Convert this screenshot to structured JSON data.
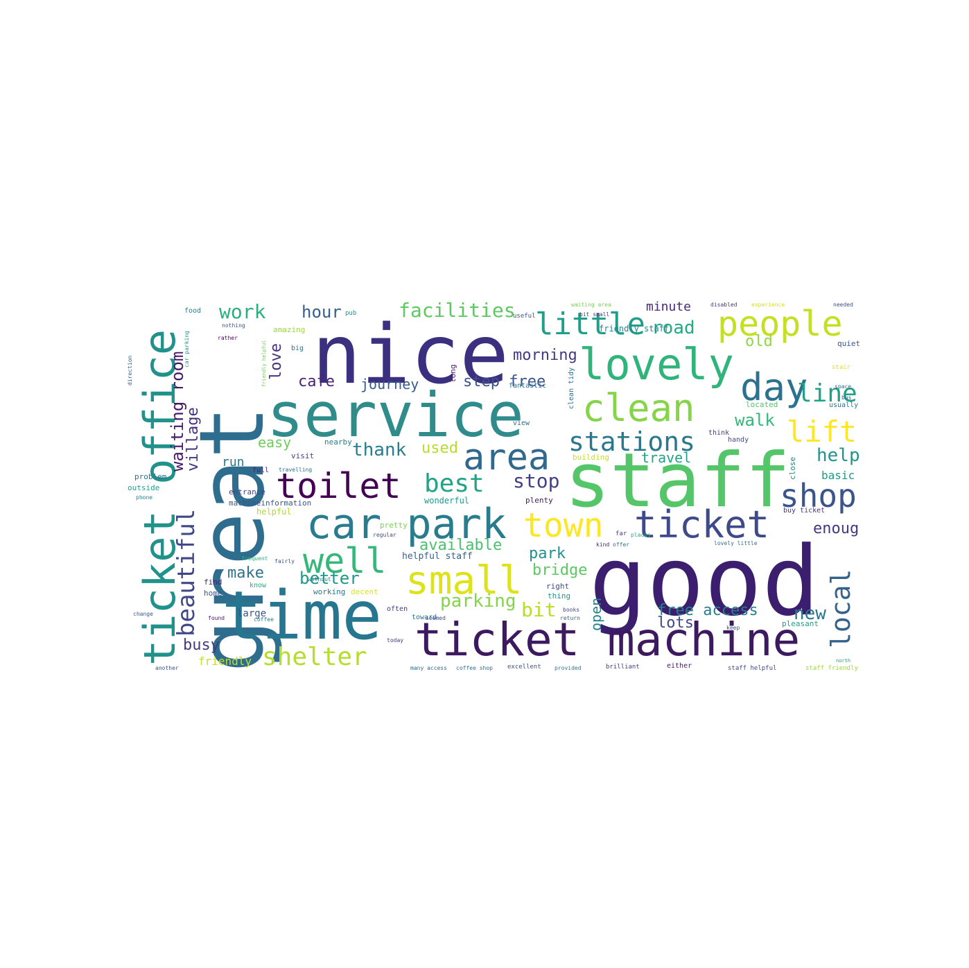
{
  "wordcloud": {
    "words": [
      {
        "text": "nice",
        "color": "#3b2f7f"
      },
      {
        "text": "great",
        "color": "#2e6d8e"
      },
      {
        "text": "good",
        "color": "#3b1e6e"
      },
      {
        "text": "staff",
        "color": "#54c568"
      },
      {
        "text": "service",
        "color": "#2f8c8a"
      },
      {
        "text": "time",
        "color": "#25768e"
      },
      {
        "text": "ticket machine",
        "color": "#3d1a5f"
      },
      {
        "text": "ticket office",
        "color": "#21918c"
      },
      {
        "text": "car park",
        "color": "#287c8e"
      },
      {
        "text": "lovely",
        "color": "#2fb47c"
      },
      {
        "text": "people",
        "color": "#c5e021"
      },
      {
        "text": "toilet",
        "color": "#440154"
      },
      {
        "text": "small",
        "color": "#dde318"
      },
      {
        "text": "ticket",
        "color": "#3e4a89"
      },
      {
        "text": "clean",
        "color": "#86d549"
      },
      {
        "text": "little",
        "color": "#1f9e89"
      },
      {
        "text": "day",
        "color": "#2c728e"
      },
      {
        "text": "area",
        "color": "#31688e"
      },
      {
        "text": "town",
        "color": "#fde725"
      },
      {
        "text": "well",
        "color": "#35b779"
      },
      {
        "text": "shop",
        "color": "#39558c"
      },
      {
        "text": "stations",
        "color": "#2a788e"
      },
      {
        "text": "beautiful",
        "color": "#3f4788"
      },
      {
        "text": "shelter",
        "color": "#b5de2b"
      },
      {
        "text": "local",
        "color": "#33638d"
      },
      {
        "text": "best",
        "color": "#20a386"
      },
      {
        "text": "lift",
        "color": "#fde725"
      },
      {
        "text": "line",
        "color": "#1fa187"
      },
      {
        "text": "facilities",
        "color": "#5ec962"
      },
      {
        "text": "work",
        "color": "#2ab07f"
      },
      {
        "text": "waiting room",
        "color": "#48186a"
      },
      {
        "text": "village",
        "color": "#46337e"
      },
      {
        "text": "road",
        "color": "#22a884"
      },
      {
        "text": "hour",
        "color": "#355f8d"
      },
      {
        "text": "better",
        "color": "#1f988b"
      },
      {
        "text": "available",
        "color": "#4ac16d"
      },
      {
        "text": "parking",
        "color": "#84d44b"
      },
      {
        "text": "free access",
        "color": "#277f8e"
      },
      {
        "text": "journey",
        "color": "#365c8d"
      },
      {
        "text": "step free",
        "color": "#3b528b"
      },
      {
        "text": "cafe",
        "color": "#482475"
      },
      {
        "text": "thank",
        "color": "#287d8e"
      },
      {
        "text": "morning",
        "color": "#443983"
      },
      {
        "text": "walk",
        "color": "#35b779"
      },
      {
        "text": "help",
        "color": "#1f958b"
      },
      {
        "text": "stop",
        "color": "#424086"
      },
      {
        "text": "bit",
        "color": "#b8de29"
      },
      {
        "text": "lots",
        "color": "#3e4a89"
      },
      {
        "text": "busy",
        "color": "#443a83"
      },
      {
        "text": "enough",
        "color": "#453882"
      },
      {
        "text": "bridge",
        "color": "#5cc863"
      },
      {
        "text": "make",
        "color": "#2c728e"
      },
      {
        "text": "new",
        "color": "#2a768e"
      },
      {
        "text": "park",
        "color": "#21918c"
      },
      {
        "text": "used",
        "color": "#b5de2b"
      },
      {
        "text": "old",
        "color": "#8fd744"
      },
      {
        "text": "love",
        "color": "#46327e"
      },
      {
        "text": "easy",
        "color": "#6ccd5a"
      },
      {
        "text": "travel",
        "color": "#20a386"
      },
      {
        "text": "minute",
        "color": "#482878"
      },
      {
        "text": "open",
        "color": "#26828e"
      },
      {
        "text": "run",
        "color": "#2a788e"
      },
      {
        "text": "basic",
        "color": "#1f978b"
      },
      {
        "text": "friendly",
        "color": "#c2df23"
      },
      {
        "text": "friendly staff",
        "color": "#26828e"
      },
      {
        "text": "helpful staff",
        "color": "#35608d"
      },
      {
        "text": "helpful",
        "color": "#addc30"
      },
      {
        "text": "plenty",
        "color": "#48186a"
      },
      {
        "text": "pleasant",
        "color": "#1fa088"
      },
      {
        "text": "nearby",
        "color": "#287c8e"
      },
      {
        "text": "wonderful",
        "color": "#1f9a8a"
      },
      {
        "text": "entrance",
        "color": "#414487"
      },
      {
        "text": "machineinformation",
        "color": "#39558c"
      },
      {
        "text": "problem",
        "color": "#2d708e"
      },
      {
        "text": "outside",
        "color": "#20a486"
      },
      {
        "text": "large",
        "color": "#3b528b"
      },
      {
        "text": "find",
        "color": "#481f70"
      },
      {
        "text": "home",
        "color": "#3a548c"
      },
      {
        "text": "working",
        "color": "#2a768e"
      },
      {
        "text": "decent",
        "color": "#dde318"
      },
      {
        "text": "pretty",
        "color": "#7ad151"
      },
      {
        "text": "often",
        "color": "#443983"
      },
      {
        "text": "toward",
        "color": "#2c728e"
      },
      {
        "text": "right",
        "color": "#3e4a89"
      },
      {
        "text": "thing",
        "color": "#1f988b"
      },
      {
        "text": "full",
        "color": "#482173"
      },
      {
        "text": "know",
        "color": "#27ad81"
      },
      {
        "text": "visit",
        "color": "#433e85"
      },
      {
        "text": "amazing",
        "color": "#9bd93c"
      },
      {
        "text": "useful",
        "color": "#3b528b"
      },
      {
        "text": "view",
        "color": "#31688e"
      },
      {
        "text": "long",
        "color": "#481b6d"
      },
      {
        "text": "quiet",
        "color": "#39568c"
      },
      {
        "text": "located",
        "color": "#52c569"
      },
      {
        "text": "usually",
        "color": "#2c728e"
      },
      {
        "text": "handy",
        "color": "#3f4788"
      },
      {
        "text": "close",
        "color": "#25848e"
      },
      {
        "text": "think",
        "color": "#433e85"
      },
      {
        "text": "buy ticket",
        "color": "#46327e"
      },
      {
        "text": "staff helpful",
        "color": "#3e4989"
      },
      {
        "text": "staff friendly",
        "color": "#a0da39"
      },
      {
        "text": "coffee shop",
        "color": "#2d708e"
      },
      {
        "text": "excellent",
        "color": "#3b528b"
      },
      {
        "text": "provided",
        "color": "#2a788e"
      },
      {
        "text": "brilliant",
        "color": "#443a83"
      },
      {
        "text": "either",
        "color": "#481467"
      },
      {
        "text": "many access",
        "color": "#31678e"
      },
      {
        "text": "building",
        "color": "#c8e020"
      },
      {
        "text": "fantastic",
        "color": "#2c718e"
      },
      {
        "text": "clean tidy",
        "color": "#2e6e8e"
      },
      {
        "text": "food",
        "color": "#29798e"
      },
      {
        "text": "big",
        "color": "#2d708e"
      },
      {
        "text": "rather",
        "color": "#440154"
      },
      {
        "text": "nothing",
        "color": "#3b528b"
      },
      {
        "text": "pub",
        "color": "#21918c"
      },
      {
        "text": "disabled",
        "color": "#46337e"
      },
      {
        "text": "experience",
        "color": "#d2e21b"
      },
      {
        "text": "needed",
        "color": "#3d4e8a"
      },
      {
        "text": "waiting area",
        "color": "#75d054"
      },
      {
        "text": "direction",
        "color": "#34608d"
      },
      {
        "text": "car parking",
        "color": "#1f9a8a"
      },
      {
        "text": "friendly helpful",
        "color": "#6ece58"
      },
      {
        "text": "travelling",
        "color": "#2c728e"
      },
      {
        "text": "regular",
        "color": "#3e4a89"
      },
      {
        "text": "frequent",
        "color": "#2fb47c"
      },
      {
        "text": "without",
        "color": "#25838e"
      },
      {
        "text": "fairly",
        "color": "#3a538b"
      },
      {
        "text": "change",
        "color": "#39558c"
      },
      {
        "text": "phone",
        "color": "#26828e"
      },
      {
        "text": "found",
        "color": "#481769"
      },
      {
        "text": "coffee",
        "color": "#2a788e"
      },
      {
        "text": "bit small",
        "color": "#443983"
      },
      {
        "text": "return",
        "color": "#365d8d"
      },
      {
        "text": "books",
        "color": "#3f4788"
      },
      {
        "text": "kind",
        "color": "#481f70"
      },
      {
        "text": "offer",
        "color": "#2c728e"
      },
      {
        "text": "far",
        "color": "#424086"
      },
      {
        "text": "places",
        "color": "#22a785"
      },
      {
        "text": "today",
        "color": "#443983"
      },
      {
        "text": "seemed",
        "color": "#3e4989"
      },
      {
        "text": "lovely little",
        "color": "#2d708e"
      },
      {
        "text": "keep",
        "color": "#3b528b"
      },
      {
        "text": "north",
        "color": "#1f9e89"
      },
      {
        "text": "another",
        "color": "#3b528b"
      },
      {
        "text": "stair",
        "color": "#dde318"
      },
      {
        "text": "space",
        "color": "#31688e"
      },
      {
        "text": "bus",
        "color": "#39558c"
      }
    ]
  }
}
